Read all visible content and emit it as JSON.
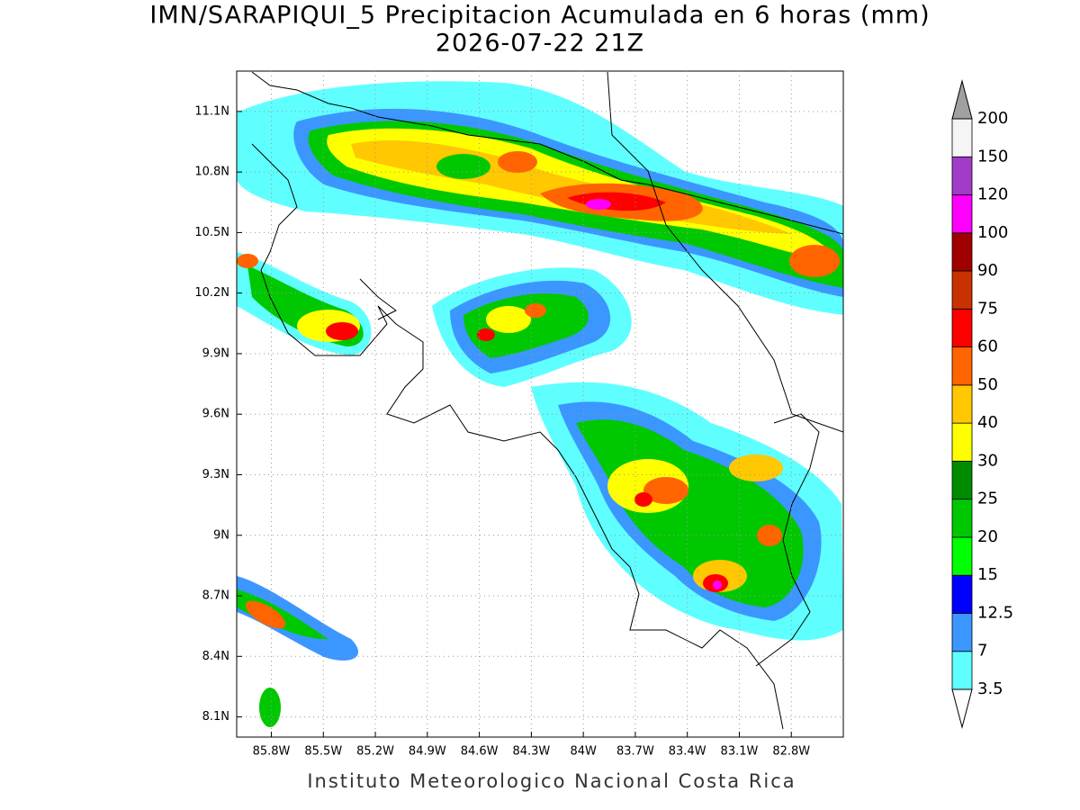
{
  "title": "IMN/SARAPIQUI_5 Precipitacion Acumulada en 6 horas (mm)",
  "subtitle": "2026-07-22 21Z",
  "footer": "Instituto Meteorologico Nacional Costa Rica",
  "map": {
    "xlim": [
      -86.0,
      -82.5
    ],
    "ylim": [
      8.0,
      11.3
    ],
    "xticks": [
      {
        "value": -85.8,
        "label": "85.8W"
      },
      {
        "value": -85.5,
        "label": "85.5W"
      },
      {
        "value": -85.2,
        "label": "85.2W"
      },
      {
        "value": -84.9,
        "label": "84.9W"
      },
      {
        "value": -84.6,
        "label": "84.6W"
      },
      {
        "value": -84.3,
        "label": "84.3W"
      },
      {
        "value": -84.0,
        "label": "84W"
      },
      {
        "value": -83.7,
        "label": "83.7W"
      },
      {
        "value": -83.4,
        "label": "83.4W"
      },
      {
        "value": -83.1,
        "label": "83.1W"
      },
      {
        "value": -82.8,
        "label": "82.8W"
      }
    ],
    "yticks": [
      {
        "value": 11.1,
        "label": "11.1N"
      },
      {
        "value": 10.8,
        "label": "10.8N"
      },
      {
        "value": 10.5,
        "label": "10.5N"
      },
      {
        "value": 10.2,
        "label": "10.2N"
      },
      {
        "value": 9.9,
        "label": "9.9N"
      },
      {
        "value": 9.6,
        "label": "9.6N"
      },
      {
        "value": 9.3,
        "label": "9.3N"
      },
      {
        "value": 9.0,
        "label": "9N"
      },
      {
        "value": 8.7,
        "label": "8.7N"
      },
      {
        "value": 8.4,
        "label": "8.4N"
      },
      {
        "value": 8.1,
        "label": "8.1N"
      }
    ],
    "grid": true
  },
  "colorbar": {
    "levels": [
      3.5,
      7,
      12.5,
      15,
      20,
      25,
      30,
      40,
      50,
      60,
      75,
      90,
      100,
      120,
      150,
      200
    ],
    "colors": [
      "#5fffff",
      "#3c96ff",
      "#0000ff",
      "#00ff00",
      "#00c800",
      "#008c00",
      "#ffff00",
      "#ffc800",
      "#ff6400",
      "#ff0000",
      "#c83200",
      "#a00000",
      "#ff00ff",
      "#a03cc8",
      "#f5f5f5"
    ],
    "over_color": "#a0a0a0",
    "under_color": "#ffffff"
  }
}
